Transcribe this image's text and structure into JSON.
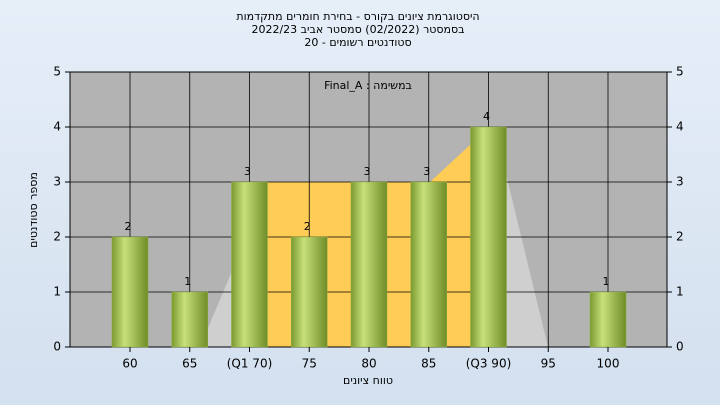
{
  "chart_data": {
    "type": "bar",
    "title": [
      "היסטוגרמת ציונים בקורס - בחירת חומרים מתקדמות",
      "בסמסטר  (02/2022)  סמסטר אביב 2022/23",
      "סטודנטים רשומים - 20"
    ],
    "annotation": "Final_A : במשימה",
    "x_label": "טווח ציונים",
    "y_label": "מספר סטודנטים",
    "categories": [
      "60",
      "65",
      "(Q1 70)",
      "75",
      "80",
      "85",
      "(Q3 90)",
      "95",
      "100"
    ],
    "values": [
      2,
      1,
      3,
      2,
      3,
      3,
      4,
      0,
      1
    ],
    "value_labels": [
      "2",
      "1",
      "3",
      "2",
      "3",
      "3",
      "4",
      null,
      "1"
    ],
    "color": "#8db040",
    "ylim": [
      0,
      5
    ],
    "yticks": [
      0,
      1,
      2,
      3,
      4,
      5
    ],
    "grid": true
  }
}
